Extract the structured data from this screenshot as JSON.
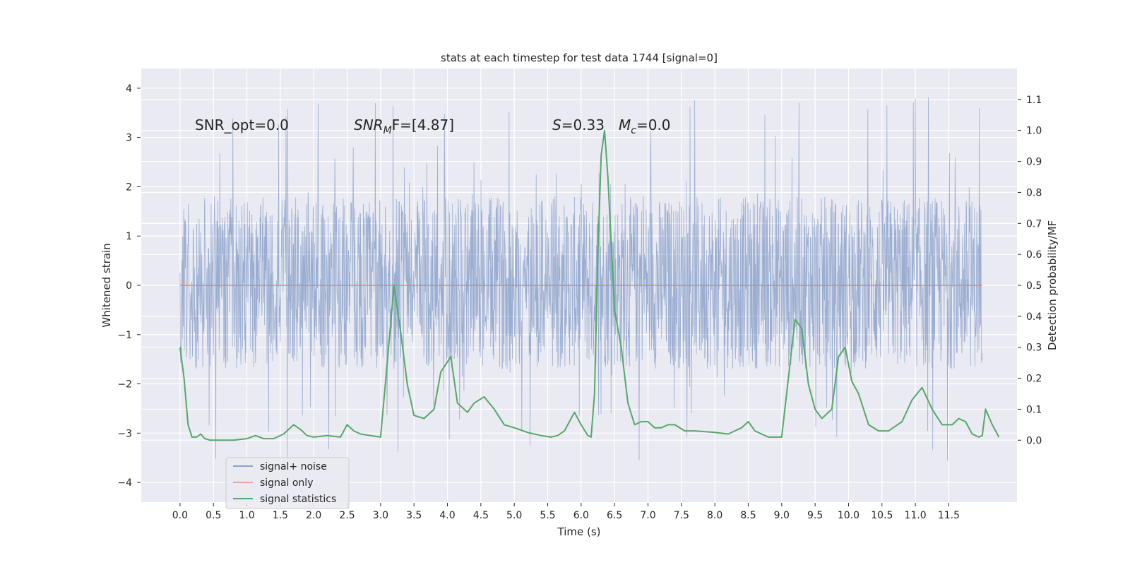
{
  "chart_data": {
    "type": "line",
    "title": "stats at each timestep for test data 1744 [signal=0]",
    "xlabel": "Time (s)",
    "ylabel": "Whitened strain",
    "ylabel_right": "Detection probability/MF",
    "xlim": [
      -0.58,
      12.52
    ],
    "ylim": [
      -4.4,
      4.4
    ],
    "ylim_right": [
      -0.2,
      1.2
    ],
    "x_ticks": [
      0.0,
      0.5,
      1.0,
      1.5,
      2.0,
      2.5,
      3.0,
      3.5,
      4.0,
      4.5,
      5.0,
      5.5,
      6.0,
      6.5,
      7.0,
      7.5,
      8.0,
      8.5,
      9.0,
      9.5,
      10.0,
      10.5,
      11.0,
      11.5
    ],
    "x_tick_labels": [
      "0.0",
      "0.5",
      "1.0",
      "1.5",
      "2.0",
      "2.5",
      "3.0",
      "3.5",
      "4.0",
      "4.5",
      "5.0",
      "5.5",
      "6.0",
      "6.5",
      "7.0",
      "7.5",
      "8.0",
      "8.5",
      "9.0",
      "9.5",
      "10.0",
      "10.5",
      "11.0",
      "11.5"
    ],
    "y_ticks": [
      4,
      3,
      2,
      1,
      0,
      -1,
      -2,
      -3,
      -4
    ],
    "y_tick_labels": [
      "4",
      "3",
      "2",
      "1",
      "0",
      "−1",
      "−2",
      "−3",
      "−4"
    ],
    "y_right_ticks": [
      1.1,
      1.0,
      0.9,
      0.8,
      0.7,
      0.6,
      0.5,
      0.4,
      0.3,
      0.2,
      0.1,
      0.0
    ],
    "y_right_tick_labels": [
      "1.1",
      "1.0",
      "0.9",
      "0.8",
      "0.7",
      "0.6",
      "0.5",
      "0.4",
      "0.3",
      "0.2",
      "0.1",
      "0.0"
    ],
    "grid": true,
    "legend_position": "lower-left",
    "annotations": {
      "snr_opt": "SNR_opt=0.0",
      "snr_mf_main": "SNR",
      "snr_mf_sub": "M",
      "snr_mf_rest": "F=[4.87]",
      "s_main": "S",
      "s_rest": "=0.33",
      "mc_main": "M",
      "mc_sub": "c",
      "mc_rest": "=0.0"
    },
    "series": [
      {
        "name": "signal+ noise",
        "color": "#4c72b0",
        "axis": "left",
        "kind": "noise",
        "x_range": [
          0.0,
          12.0
        ],
        "amplitude_core": [
          -1.7,
          1.8
        ],
        "amplitude_max": [
          -3.6,
          3.9
        ]
      },
      {
        "name": "signal only",
        "color": "#dd8452",
        "axis": "left",
        "x": [
          0.0,
          12.0
        ],
        "values": [
          0.0,
          0.0
        ]
      },
      {
        "name": "signal statistics",
        "color": "#55a868",
        "axis": "right",
        "x": [
          0.0,
          0.06,
          0.12,
          0.18,
          0.25,
          0.31,
          0.37,
          0.45,
          0.6,
          0.8,
          1.0,
          1.13,
          1.25,
          1.4,
          1.55,
          1.7,
          1.8,
          1.9,
          2.0,
          2.2,
          2.4,
          2.5,
          2.6,
          2.7,
          2.85,
          3.0,
          3.1,
          3.2,
          3.3,
          3.4,
          3.5,
          3.65,
          3.8,
          3.9,
          4.05,
          4.15,
          4.3,
          4.4,
          4.55,
          4.7,
          4.85,
          5.0,
          5.2,
          5.4,
          5.55,
          5.65,
          5.75,
          5.9,
          6.0,
          6.1,
          6.15,
          6.2,
          6.25,
          6.3,
          6.35,
          6.4,
          6.5,
          6.6,
          6.7,
          6.8,
          6.9,
          7.0,
          7.1,
          7.2,
          7.3,
          7.4,
          7.55,
          7.7,
          8.0,
          8.2,
          8.4,
          8.5,
          8.6,
          8.8,
          9.0,
          9.1,
          9.2,
          9.3,
          9.4,
          9.5,
          9.6,
          9.75,
          9.85,
          9.95,
          10.05,
          10.15,
          10.3,
          10.45,
          10.6,
          10.8,
          10.95,
          11.1,
          11.25,
          11.4,
          11.55,
          11.65,
          11.75,
          11.85,
          11.95,
          12.0,
          12.05,
          12.15,
          12.25
        ],
        "values": [
          0.3,
          0.2,
          0.05,
          0.01,
          0.01,
          0.02,
          0.005,
          0.0,
          0.0,
          0.0,
          0.005,
          0.015,
          0.005,
          0.005,
          0.02,
          0.05,
          0.035,
          0.015,
          0.01,
          0.015,
          0.01,
          0.05,
          0.03,
          0.02,
          0.015,
          0.01,
          0.25,
          0.5,
          0.35,
          0.18,
          0.08,
          0.07,
          0.1,
          0.22,
          0.27,
          0.12,
          0.09,
          0.12,
          0.14,
          0.1,
          0.05,
          0.04,
          0.025,
          0.015,
          0.01,
          0.015,
          0.03,
          0.09,
          0.05,
          0.015,
          0.01,
          0.15,
          0.6,
          0.92,
          1.0,
          0.85,
          0.42,
          0.3,
          0.12,
          0.05,
          0.06,
          0.06,
          0.04,
          0.04,
          0.05,
          0.05,
          0.03,
          0.03,
          0.025,
          0.02,
          0.04,
          0.06,
          0.03,
          0.01,
          0.01,
          0.2,
          0.39,
          0.36,
          0.18,
          0.1,
          0.07,
          0.1,
          0.27,
          0.3,
          0.19,
          0.15,
          0.05,
          0.03,
          0.03,
          0.06,
          0.13,
          0.17,
          0.1,
          0.05,
          0.05,
          0.07,
          0.06,
          0.02,
          0.01,
          0.015,
          0.1,
          0.05,
          0.01
        ]
      }
    ]
  }
}
